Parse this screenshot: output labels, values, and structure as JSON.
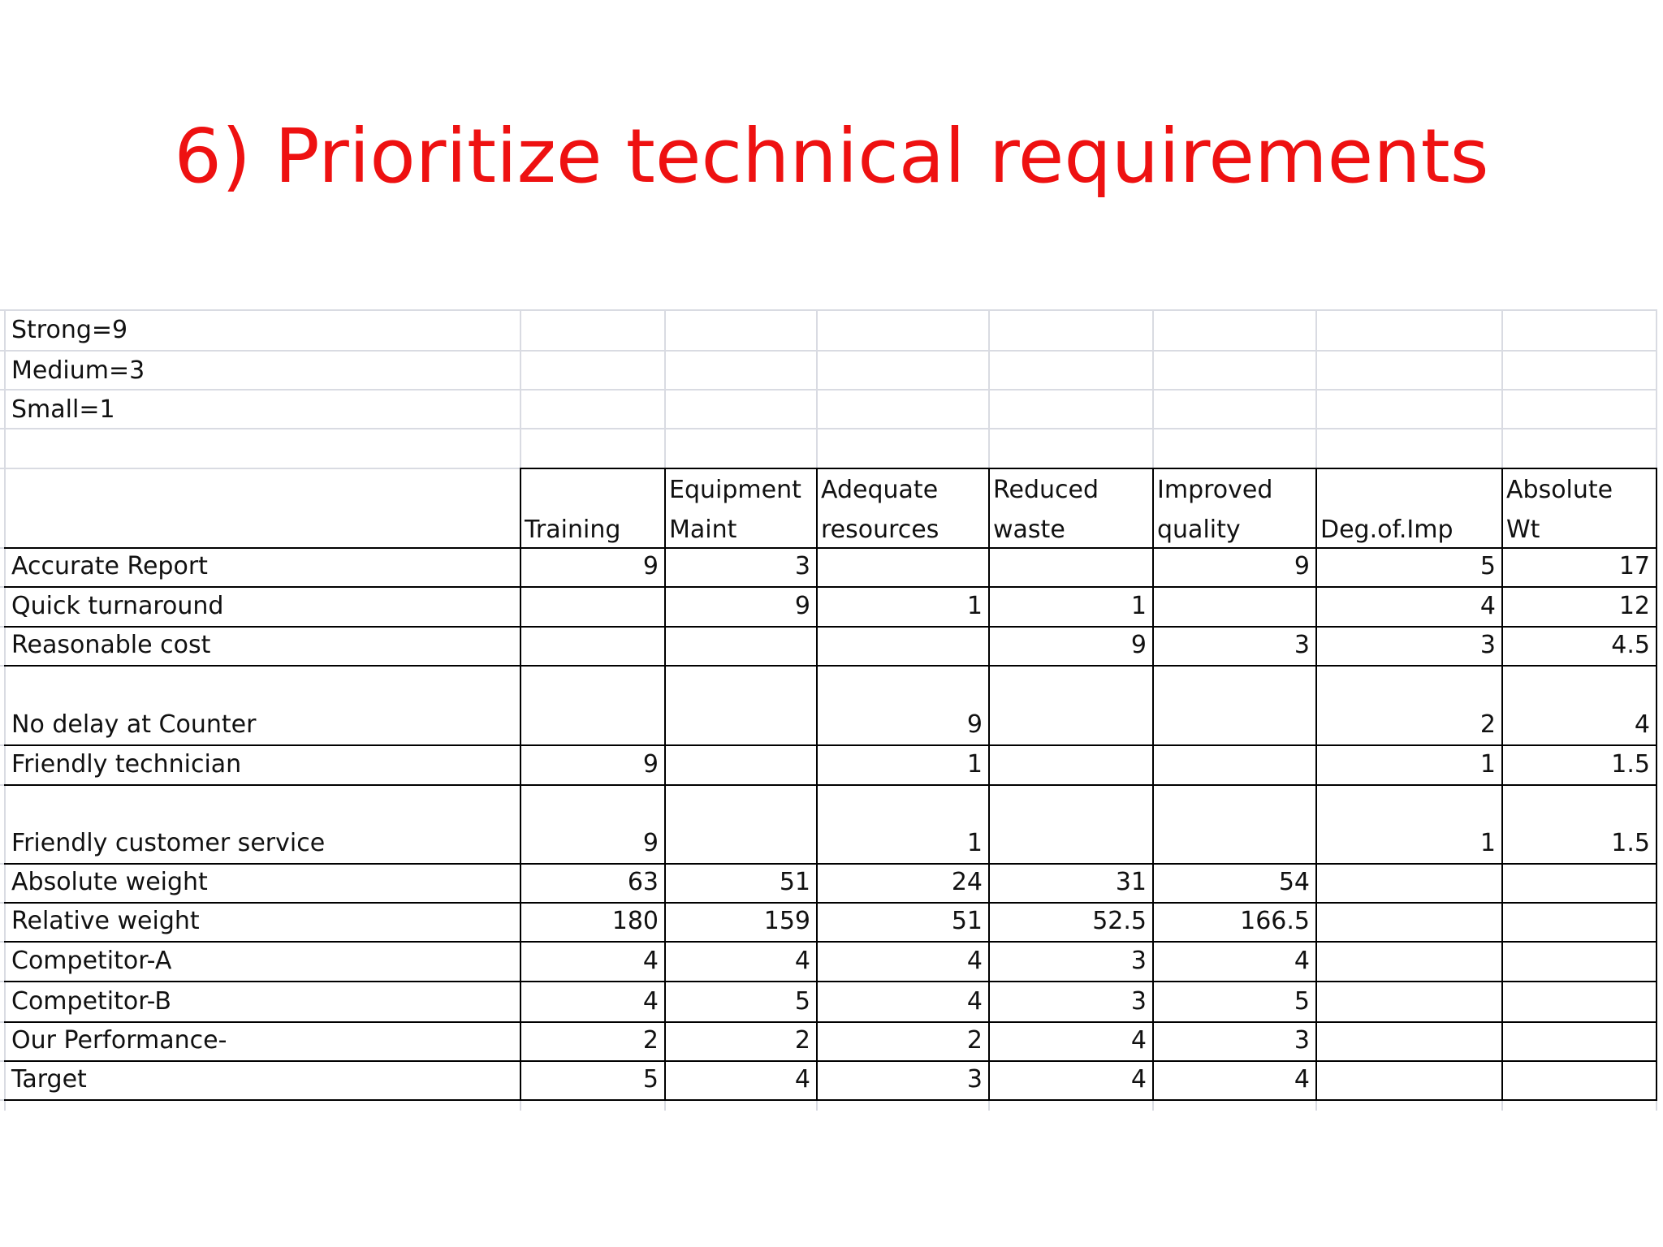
{
  "title": "6) Prioritize technical requirements",
  "legend": [
    "Strong=9",
    "Medium=3",
    "Small=1"
  ],
  "table": {
    "header_line1": [
      "",
      "Equipment",
      "Adequate",
      "Reduced",
      "Improved",
      "",
      "Absolute"
    ],
    "header_line2": [
      "Training",
      "Maint",
      "resources",
      "waste",
      "quality",
      "Deg.of.Imp",
      "Wt"
    ],
    "rows": [
      {
        "label": "Accurate Report",
        "values": [
          "9",
          "3",
          "",
          "",
          "9",
          "5",
          "17"
        ]
      },
      {
        "label": "Quick turnaround",
        "values": [
          "",
          "9",
          "1",
          "1",
          "",
          "4",
          "12"
        ]
      },
      {
        "label": "Reasonable cost",
        "values": [
          "",
          "",
          "",
          "9",
          "3",
          "3",
          "4.5"
        ]
      },
      {
        "label": "No delay at Counter",
        "values": [
          "",
          "",
          "9",
          "",
          "",
          "2",
          "4"
        ]
      },
      {
        "label": "Friendly technician",
        "values": [
          "9",
          "",
          "1",
          "",
          "",
          "1",
          "1.5"
        ]
      },
      {
        "label": "Friendly customer service",
        "values": [
          "9",
          "",
          "1",
          "",
          "",
          "1",
          "1.5"
        ]
      },
      {
        "label": "Absolute weight",
        "values": [
          "63",
          "51",
          "24",
          "31",
          "54",
          "",
          ""
        ]
      },
      {
        "label": "Relative weight",
        "values": [
          "180",
          "159",
          "51",
          "52.5",
          "166.5",
          "",
          ""
        ]
      },
      {
        "label": "Competitor-A",
        "values": [
          "4",
          "4",
          "4",
          "3",
          "4",
          "",
          ""
        ]
      },
      {
        "label": "Competitor-B",
        "values": [
          "4",
          "5",
          "4",
          "3",
          "5",
          "",
          ""
        ]
      },
      {
        "label": "Our Performance-",
        "values": [
          "2",
          "2",
          "2",
          "4",
          "3",
          "",
          ""
        ]
      },
      {
        "label": "Target",
        "values": [
          "5",
          "4",
          "3",
          "4",
          "4",
          "",
          ""
        ]
      }
    ]
  }
}
